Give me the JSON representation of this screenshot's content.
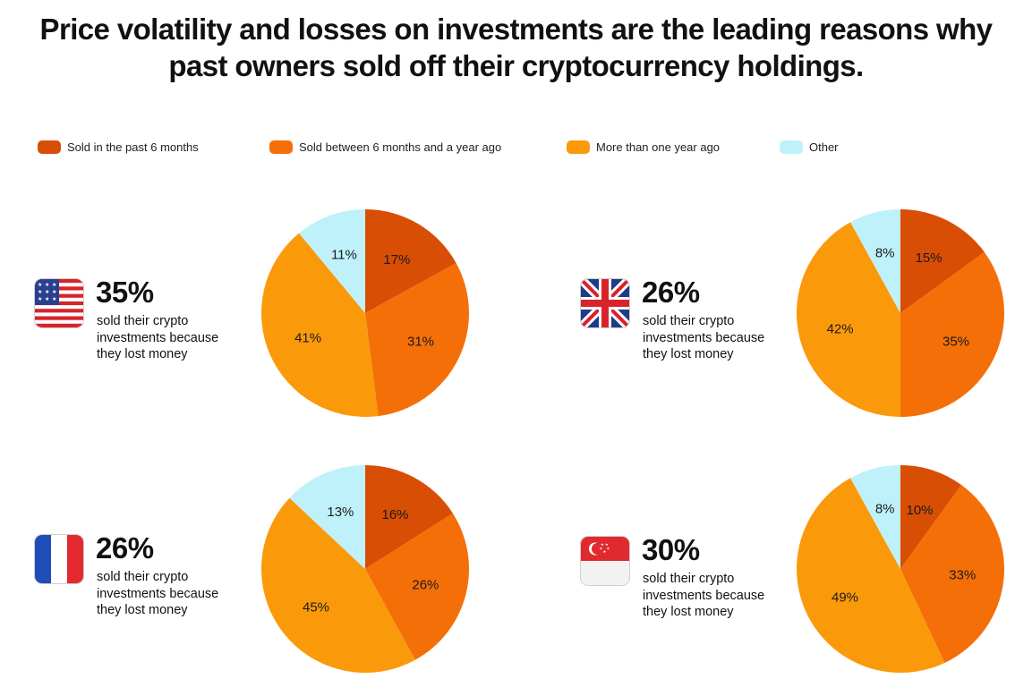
{
  "title": {
    "line1": "Price volatility and losses on investments are the leading reasons why",
    "line2": "past owners sold off their cryptocurrency holdings."
  },
  "legend": [
    {
      "label": "Sold in the past 6 months",
      "color": "#D94E05"
    },
    {
      "label": "Sold between 6 months and a year ago",
      "color": "#F56F08"
    },
    {
      "label": "More than one year ago",
      "color": "#FA9A0A"
    },
    {
      "label": "Other",
      "color": "#BFF1FA"
    }
  ],
  "panels": [
    {
      "flag_icon": "us-flag-icon",
      "big_pct": "35%",
      "caption": "sold their crypto investments because they lost money"
    },
    {
      "flag_icon": "uk-flag-icon",
      "big_pct": "26%",
      "caption": "sold their crypto investments because they lost money"
    },
    {
      "flag_icon": "france-flag-icon",
      "big_pct": "26%",
      "caption": "sold their crypto investments because they lost money"
    },
    {
      "flag_icon": "singapore-flag-icon",
      "big_pct": "30%",
      "caption": "sold their crypto investments because they lost money"
    }
  ],
  "chart_data": [
    {
      "type": "pie",
      "categories": [
        "Sold in the past 6 months",
        "Sold between 6 months and a year ago",
        "More than one year ago",
        "Other"
      ],
      "values": [
        17,
        31,
        41,
        11
      ],
      "labels": [
        "17%",
        "31%",
        "41%",
        "11%"
      ]
    },
    {
      "type": "pie",
      "categories": [
        "Sold in the past 6 months",
        "Sold between 6 months and a year ago",
        "More than one year ago",
        "Other"
      ],
      "values": [
        15,
        35,
        42,
        8
      ],
      "labels": [
        "15%",
        "35%",
        "42%",
        "8%"
      ]
    },
    {
      "type": "pie",
      "categories": [
        "Sold in the past 6 months",
        "Sold between 6 months and a year ago",
        "More than one year ago",
        "Other"
      ],
      "values": [
        16,
        26,
        45,
        13
      ],
      "labels": [
        "16%",
        "26%",
        "45%",
        "13%"
      ]
    },
    {
      "type": "pie",
      "categories": [
        "Sold in the past 6 months",
        "Sold between 6 months and a year ago",
        "More than one year ago",
        "Other"
      ],
      "values": [
        10,
        33,
        49,
        8
      ],
      "labels": [
        "10%",
        "33%",
        "49%",
        "8%"
      ]
    }
  ]
}
